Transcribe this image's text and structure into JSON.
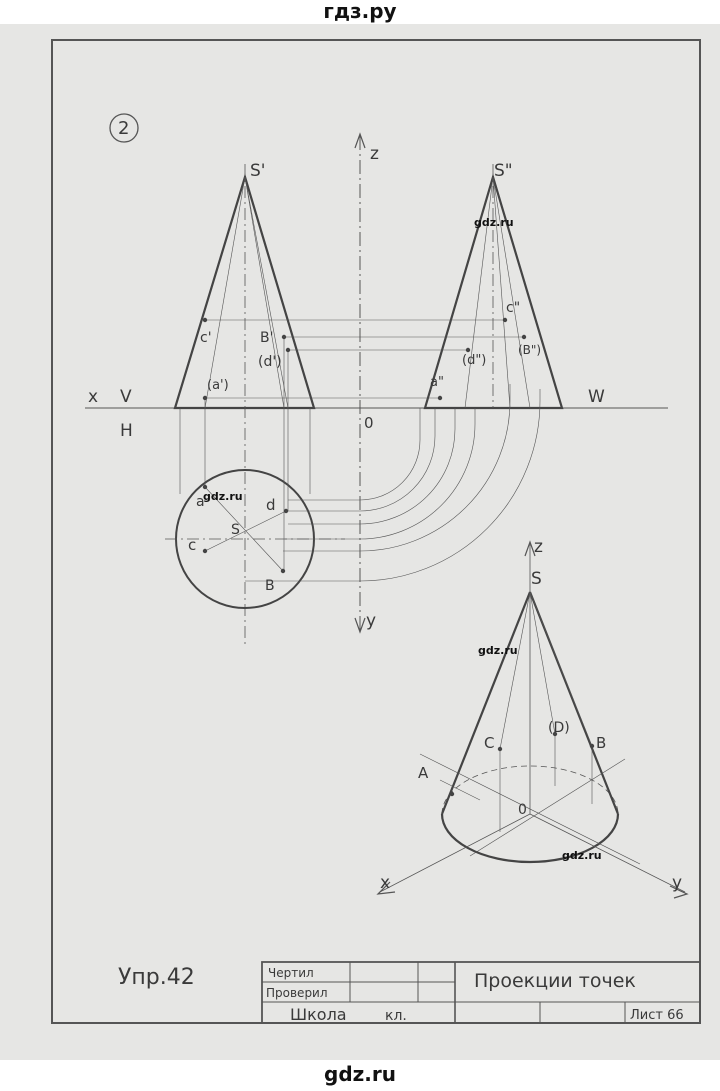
{
  "site": {
    "top_label": "гдз.ру",
    "bottom_label": "gdz.ru"
  },
  "watermarks": [
    "gdz.ru",
    "gdz.ru",
    "gdz.ru",
    "gdz.ru"
  ],
  "figure_number": "2",
  "labels": {
    "s_v": "S'",
    "s_w": "S\"",
    "z_axis": "z",
    "y_axis": "y",
    "x_axis": "x",
    "v_plane": "V",
    "h_plane": "H",
    "w_plane": "W",
    "origin": "0",
    "c_v": "c'",
    "b_v": "B'",
    "d_v": "(d')",
    "a_v": "(a')",
    "c_w": "c\"",
    "d_w": "(d\")",
    "b_w": "(B\")",
    "a_w": "a\"",
    "a_h": "a",
    "d_h": "d",
    "s_h": "S",
    "c_h": "c",
    "b_h": "B",
    "iso_z": "z",
    "iso_s": "S",
    "iso_d": "(D)",
    "iso_c": "C",
    "iso_b": "B",
    "iso_a": "A",
    "iso_o": "0",
    "iso_x": "x",
    "iso_y": "y"
  },
  "exercise": "Упр.42",
  "title_block": {
    "drew": "Чертил",
    "checked": "Проверил",
    "school": "Школа",
    "grade": "кл.",
    "title": "Проекции точек",
    "sheet": "Лист 66"
  }
}
